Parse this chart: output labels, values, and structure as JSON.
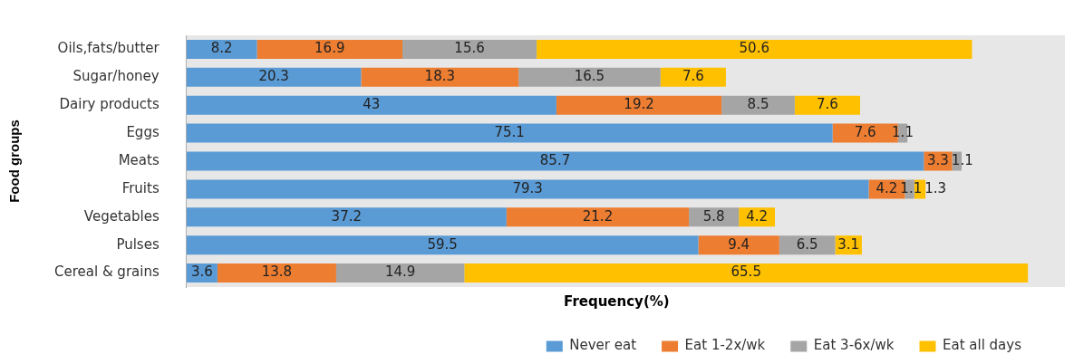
{
  "chart_data": {
    "type": "bar",
    "orientation": "horizontal",
    "stacked": true,
    "xlabel": "Frequency(%)",
    "ylabel": "Food groups",
    "categories": [
      "Oils,fats/butter",
      "Sugar/honey",
      "Dairy products",
      "Eggs",
      "Meats",
      "Fruits",
      "Vegetables",
      "Pulses",
      "Cereal & grains"
    ],
    "series": [
      {
        "name": "Never eat",
        "color": "#5b9bd5",
        "values": [
          8.2,
          20.3,
          43,
          75.1,
          85.7,
          79.3,
          37.2,
          59.5,
          3.6
        ]
      },
      {
        "name": "Eat 1-2x/wk",
        "color": "#ed7d31",
        "values": [
          16.9,
          18.3,
          19.2,
          7.6,
          3.3,
          4.2,
          21.2,
          9.4,
          13.8
        ]
      },
      {
        "name": "Eat 3-6x/wk",
        "color": "#a5a5a5",
        "values": [
          15.6,
          16.5,
          8.5,
          1.1,
          1.1,
          1.1,
          5.8,
          6.5,
          14.9
        ]
      },
      {
        "name": "Eat all days",
        "color": "#ffc000",
        "values": [
          50.6,
          7.6,
          7.6,
          null,
          null,
          1.3,
          4.2,
          3.1,
          65.5
        ]
      }
    ],
    "data_labels": true,
    "grid": false,
    "legend": "bottom",
    "tick_labels": "y"
  }
}
